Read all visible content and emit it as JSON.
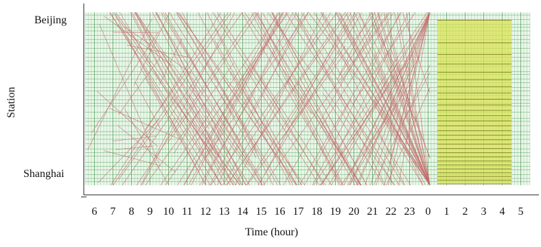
{
  "chart_data": {
    "type": "line",
    "title": "",
    "xlabel": "Time (hour)",
    "ylabel": "Station",
    "x_tick_labels": [
      "6",
      "7",
      "8",
      "9",
      "10",
      "11",
      "12",
      "13",
      "14",
      "15",
      "16",
      "17",
      "18",
      "19",
      "20",
      "21",
      "22",
      "23",
      "0",
      "1",
      "2",
      "3",
      "4",
      "5"
    ],
    "x_range_hours": [
      5.5,
      29.5
    ],
    "stations": [
      "Beijing",
      "Shanghai"
    ],
    "y_range_km": [
      0,
      1318
    ],
    "grid": true,
    "maintenance_window": {
      "start": "0:30",
      "end": "4:30",
      "label": ""
    },
    "train_service_window": {
      "start": "6:00",
      "end": "24:00"
    },
    "series": []
  },
  "colors": {
    "train_paths": "#c46b6b",
    "grid": "#2f8f3a",
    "background": "#eaf6ea",
    "maintenance_fill": "#d9e24a",
    "maintenance_lines": "#6b6a1a",
    "axis": "#222222"
  }
}
